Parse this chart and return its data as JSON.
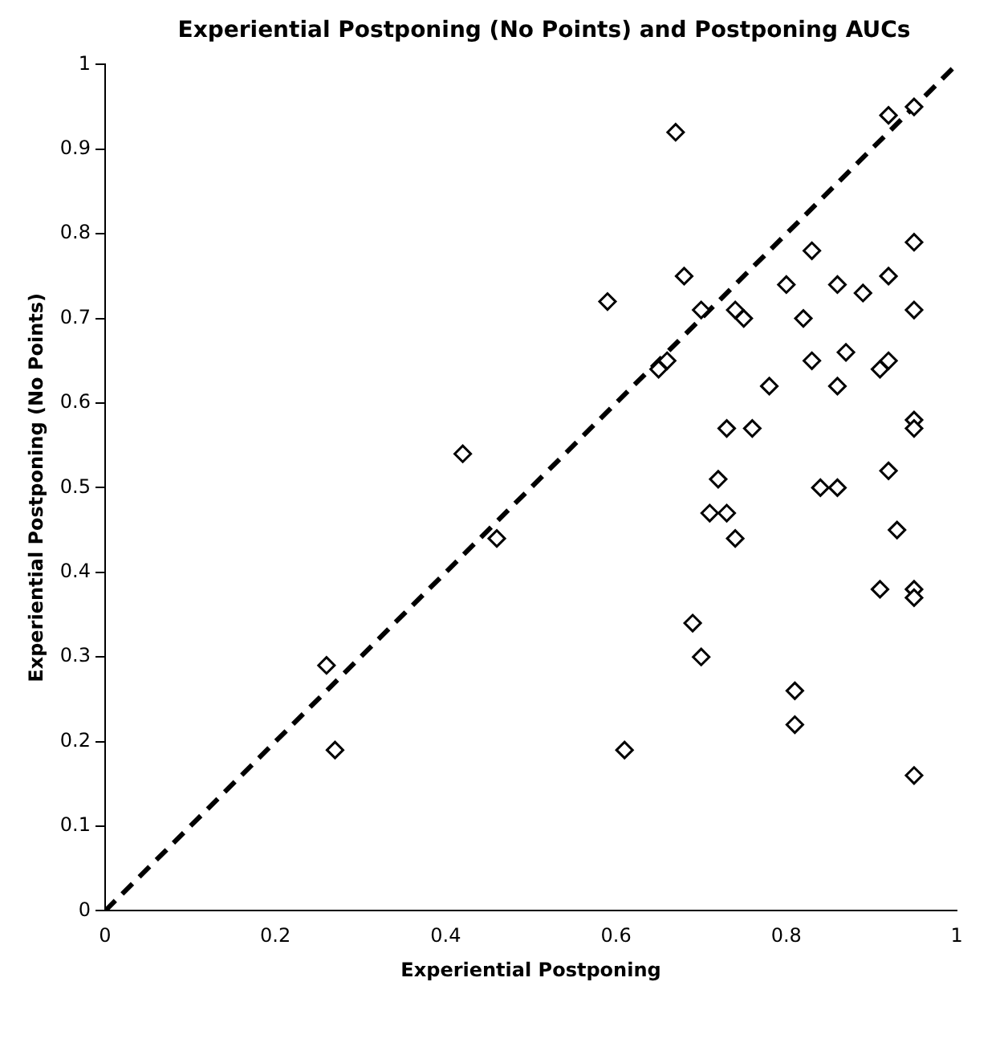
{
  "chart_data": {
    "type": "scatter",
    "title": "Experiential Postponing (No Points) and Postponing AUCs",
    "xlabel": "Experiential Postponing",
    "ylabel": "Experiential Postponing (No Points)",
    "xlim": [
      0,
      1
    ],
    "ylim": [
      0,
      1
    ],
    "xticks": [
      0,
      0.2,
      0.4,
      0.6,
      0.8,
      1
    ],
    "yticks": [
      0,
      0.1,
      0.2,
      0.3,
      0.4,
      0.5,
      0.6,
      0.7,
      0.8,
      0.9,
      1
    ],
    "grid": false,
    "legend": false,
    "marker": "diamond",
    "series": [
      {
        "type": "scatter",
        "color": "#000000",
        "x": [
          0.26,
          0.27,
          0.42,
          0.46,
          0.59,
          0.61,
          0.67,
          0.92,
          0.95,
          0.95,
          0.83,
          0.68,
          0.7,
          0.74,
          0.75,
          0.8,
          0.86,
          0.89,
          0.92,
          0.95,
          0.82,
          0.83,
          0.87,
          0.92,
          0.91,
          0.66,
          0.65,
          0.78,
          0.86,
          0.95,
          0.95,
          0.73,
          0.76,
          0.72,
          0.84,
          0.86,
          0.92,
          0.71,
          0.73,
          0.74,
          0.93,
          0.91,
          0.95,
          0.95,
          0.69,
          0.7,
          0.81,
          0.81,
          0.95
        ],
        "values": [
          0.29,
          0.19,
          0.54,
          0.44,
          0.72,
          0.19,
          0.92,
          0.94,
          0.95,
          0.79,
          0.78,
          0.75,
          0.71,
          0.71,
          0.7,
          0.74,
          0.74,
          0.73,
          0.75,
          0.71,
          0.7,
          0.65,
          0.66,
          0.65,
          0.64,
          0.65,
          0.64,
          0.62,
          0.62,
          0.58,
          0.57,
          0.57,
          0.57,
          0.51,
          0.5,
          0.5,
          0.52,
          0.47,
          0.47,
          0.44,
          0.45,
          0.38,
          0.38,
          0.37,
          0.34,
          0.3,
          0.26,
          0.22,
          0.16
        ]
      },
      {
        "type": "line",
        "color": "#000000",
        "line_style": "dashed",
        "marker": "none",
        "x": [
          0,
          1
        ],
        "values": [
          0,
          1
        ]
      }
    ]
  }
}
